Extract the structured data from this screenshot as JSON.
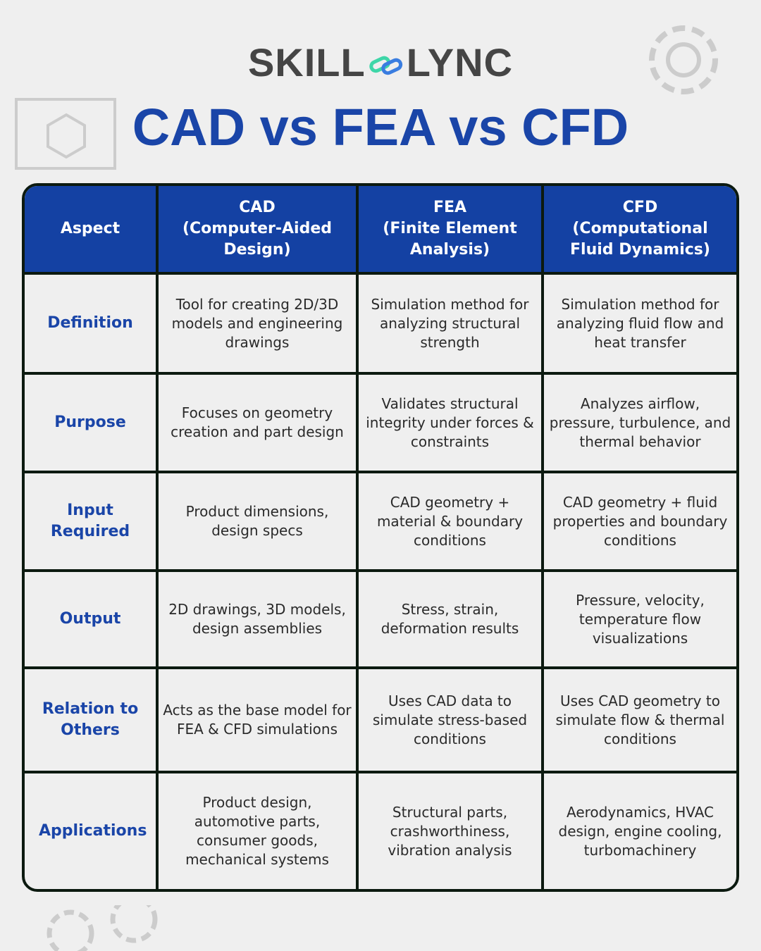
{
  "logo": {
    "left": "SKILL",
    "right": "LYNC",
    "colors": {
      "text": "#454545",
      "link_green": "#3ed6a8",
      "link_blue": "#3a7de0"
    }
  },
  "title": "CAD vs FEA vs CFD",
  "colors": {
    "header_bg": "#1441a3",
    "aspect_text": "#1a45a8",
    "border": "#0c1a10"
  },
  "table": {
    "headers": [
      "Aspect",
      "CAD\n(Computer-Aided Design)",
      "FEA\n(Finite Element Analysis)",
      "CFD\n(Computational Fluid Dynamics)"
    ],
    "rows": [
      {
        "aspect": "Definition",
        "cad": "Tool for creating 2D/3D models and engineering drawings",
        "fea": "Simulation method for analyzing structural strength",
        "cfd": "Simulation method for analyzing fluid flow and heat transfer"
      },
      {
        "aspect": "Purpose",
        "cad": "Focuses on geometry creation and part design",
        "fea": "Validates structural integrity under forces & constraints",
        "cfd": "Analyzes airflow, pressure, turbulence, and thermal behavior"
      },
      {
        "aspect": "Input Required",
        "cad": "Product dimensions, design specs",
        "fea": "CAD geometry + material & boundary conditions",
        "cfd": "CAD geometry + fluid properties and boundary conditions"
      },
      {
        "aspect": "Output",
        "cad": "2D drawings, 3D models, design assemblies",
        "fea": "Stress, strain, deformation results",
        "cfd": "Pressure, velocity, temperature flow visualizations"
      },
      {
        "aspect": "Relation to Others",
        "cad": "Acts as the base model for FEA & CFD simulations",
        "fea": "Uses CAD data to simulate stress-based conditions",
        "cfd": "Uses CAD geometry to simulate flow & thermal conditions"
      },
      {
        "aspect": "Applications",
        "cad": "Product design, automotive parts, consumer goods, mechanical systems",
        "fea": "Structural parts, crashworthiness, vibration analysis",
        "cfd": "Aerodynamics, HVAC design, engine cooling, turbomachinery"
      }
    ]
  }
}
